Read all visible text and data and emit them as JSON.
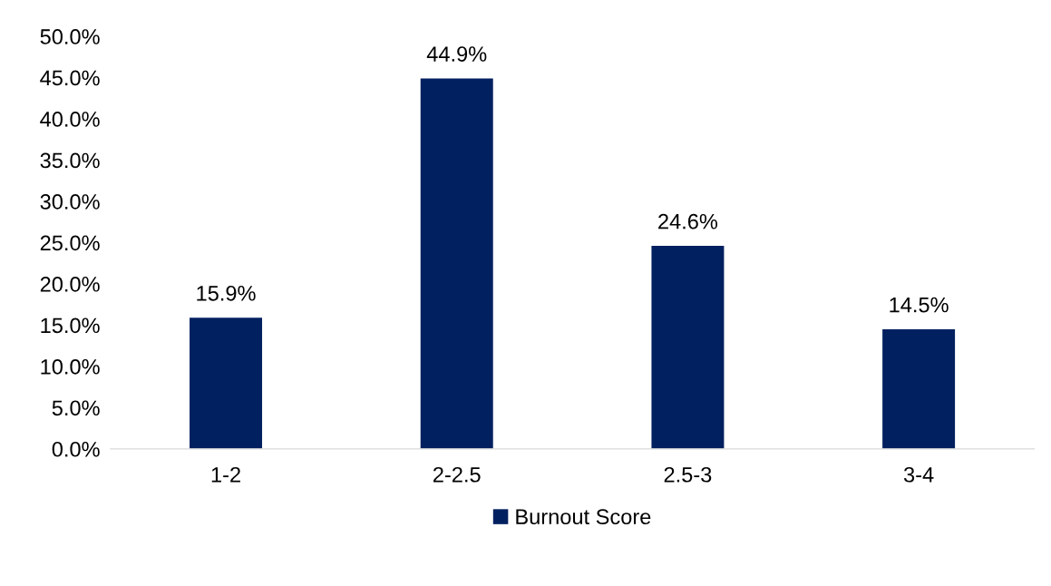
{
  "chart_data": {
    "type": "bar",
    "categories": [
      "1-2",
      "2-2.5",
      "2.5-3",
      "3-4"
    ],
    "series": [
      {
        "name": "Burnout Score",
        "color": "#002060",
        "values": [
          15.9,
          44.9,
          24.6,
          14.5
        ],
        "value_labels": [
          "15.9%",
          "44.9%",
          "24.6%",
          "14.5%"
        ]
      }
    ],
    "ylim": [
      0,
      50
    ],
    "yticks": [
      {
        "value": 0,
        "label": "0.0%"
      },
      {
        "value": 5,
        "label": "5.0%"
      },
      {
        "value": 10,
        "label": "10.0%"
      },
      {
        "value": 15,
        "label": "15.0%"
      },
      {
        "value": 20,
        "label": "20.0%"
      },
      {
        "value": 25,
        "label": "25.0%"
      },
      {
        "value": 30,
        "label": "30.0%"
      },
      {
        "value": 35,
        "label": "35.0%"
      },
      {
        "value": 40,
        "label": "40.0%"
      },
      {
        "value": 45,
        "label": "45.0%"
      },
      {
        "value": 50,
        "label": "50.0%"
      }
    ],
    "grid": false,
    "legend": "bottom"
  }
}
